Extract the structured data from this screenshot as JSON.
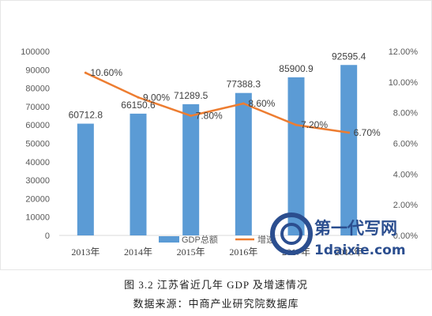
{
  "chart_data": {
    "type": "bar+line",
    "categories": [
      "2013年",
      "2014年",
      "2015年",
      "2016年",
      "2017年",
      "2018年"
    ],
    "series": [
      {
        "name": "GDP总额",
        "type": "bar",
        "axis": "left",
        "values": [
          60712.8,
          66150.6,
          71289.5,
          77388.3,
          85900.9,
          92595.4
        ],
        "labels": [
          "60712.8",
          "66150.6",
          "71289.5",
          "77388.3",
          "85900.9",
          "92595.4"
        ],
        "color": "#5b9bd5"
      },
      {
        "name": "增速",
        "type": "line",
        "axis": "right",
        "values": [
          10.6,
          9.0,
          7.8,
          8.6,
          7.2,
          6.7
        ],
        "labels": [
          "10.60%",
          "9.00%",
          "7.80%",
          "8.60%",
          "7.20%",
          "6.70%"
        ],
        "color": "#ed7d31"
      }
    ],
    "y_left": {
      "range": [
        0,
        100000
      ],
      "ticks": [
        "0",
        "10000",
        "20000",
        "30000",
        "40000",
        "50000",
        "60000",
        "70000",
        "80000",
        "90000",
        "100000"
      ]
    },
    "y_right": {
      "range": [
        0,
        12
      ],
      "ticks": [
        "0.00%",
        "2.00%",
        "4.00%",
        "6.00%",
        "8.00%",
        "10.00%",
        "12.00%"
      ]
    },
    "grid": false,
    "legend_position": "bottom"
  },
  "caption": {
    "title": "图 3.2 江苏省近几年 GDP 及增速情况",
    "source": "数据来源：中商产业研究院数据库"
  },
  "watermark": {
    "line1": "第一代写网",
    "line2": "1daixie.com"
  }
}
